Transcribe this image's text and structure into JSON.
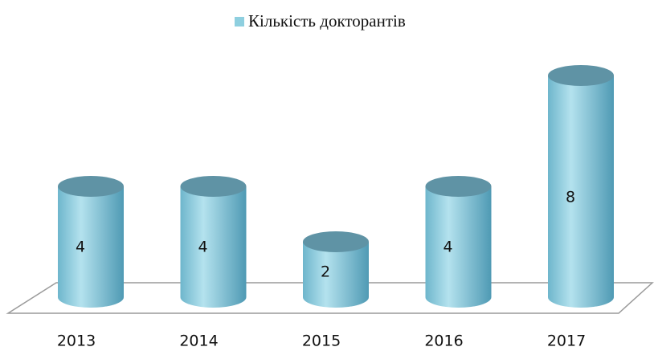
{
  "chart_data": {
    "type": "bar",
    "categories": [
      "2013",
      "2014",
      "2015",
      "2016",
      "2017"
    ],
    "series": [
      {
        "name": "Кількість докторантів",
        "color": "#8ecfdf",
        "values": [
          4,
          4,
          2,
          4,
          8
        ]
      }
    ]
  }
}
